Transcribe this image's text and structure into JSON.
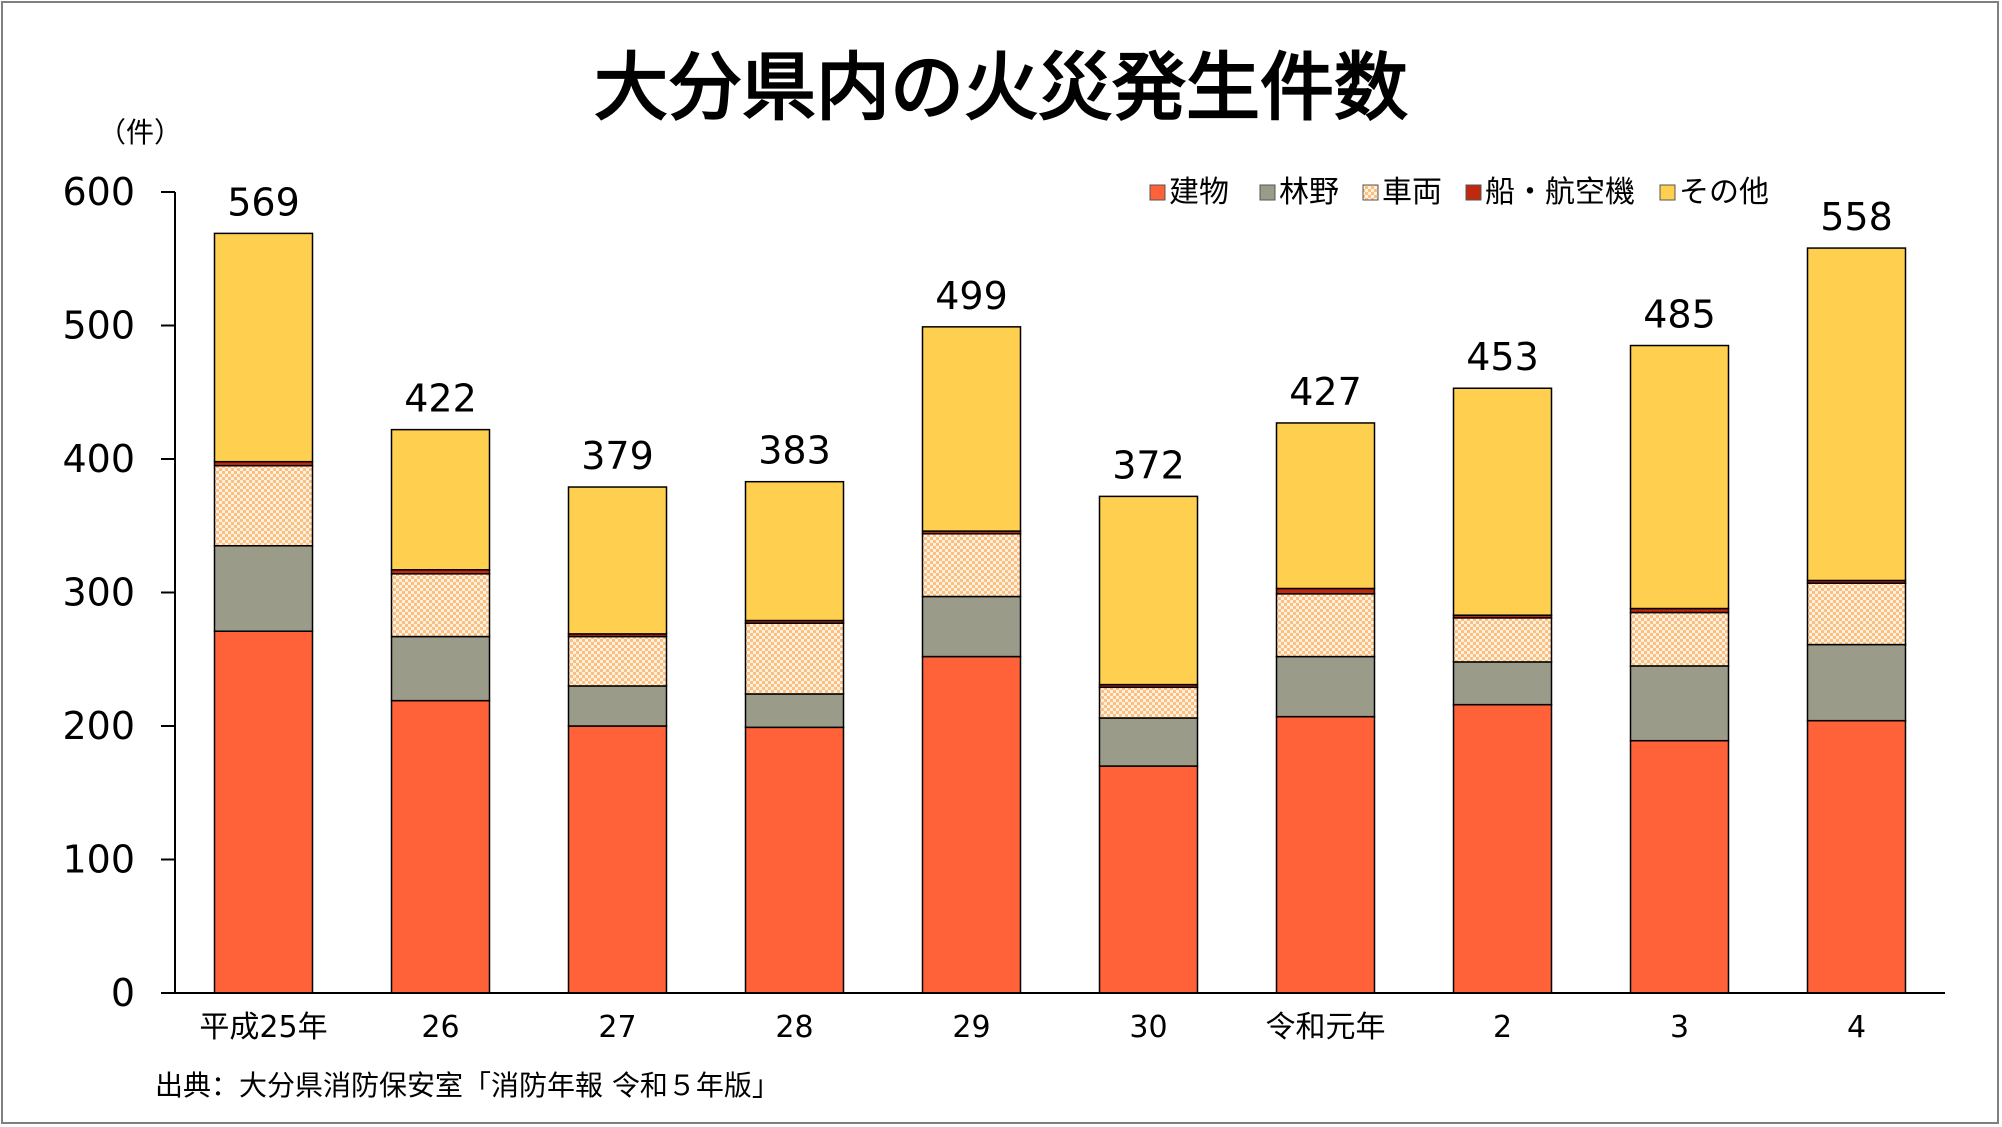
{
  "chart_data": {
    "type": "bar",
    "stacked": true,
    "title": "大分県内の火災発生件数",
    "ylabel": "（件）",
    "ylim": [
      0,
      600
    ],
    "yticks": [
      0,
      100,
      200,
      300,
      400,
      500,
      600
    ],
    "grid": false,
    "legend_position": "top-right",
    "categories": [
      "平成25年",
      "26",
      "27",
      "28",
      "29",
      "30",
      "令和元年",
      "2",
      "3",
      "4"
    ],
    "totals": [
      569,
      422,
      379,
      383,
      499,
      372,
      427,
      453,
      485,
      558
    ],
    "series": [
      {
        "name": "建物",
        "color": "#ff6138",
        "pattern": "solid",
        "values": [
          271,
          219,
          200,
          199,
          252,
          170,
          207,
          216,
          189,
          204
        ]
      },
      {
        "name": "林野",
        "color": "#9b9b8a",
        "pattern": "solid",
        "values": [
          64,
          48,
          30,
          25,
          45,
          36,
          45,
          32,
          56,
          57
        ]
      },
      {
        "name": "車両",
        "color": "#fdbf80",
        "pattern": "checker",
        "values": [
          60,
          47,
          37,
          53,
          47,
          23,
          47,
          33,
          40,
          46
        ]
      },
      {
        "name": "船・航空機",
        "color": "#c0280f",
        "pattern": "solid",
        "values": [
          3,
          3,
          2,
          2,
          2,
          2,
          4,
          2,
          3,
          2
        ]
      },
      {
        "name": "その他",
        "color": "#ffd04f",
        "pattern": "solid",
        "values": [
          171,
          105,
          110,
          104,
          153,
          141,
          124,
          170,
          197,
          249
        ]
      }
    ],
    "source": "出典：大分県消防保安室「消防年報 令和５年版」"
  }
}
